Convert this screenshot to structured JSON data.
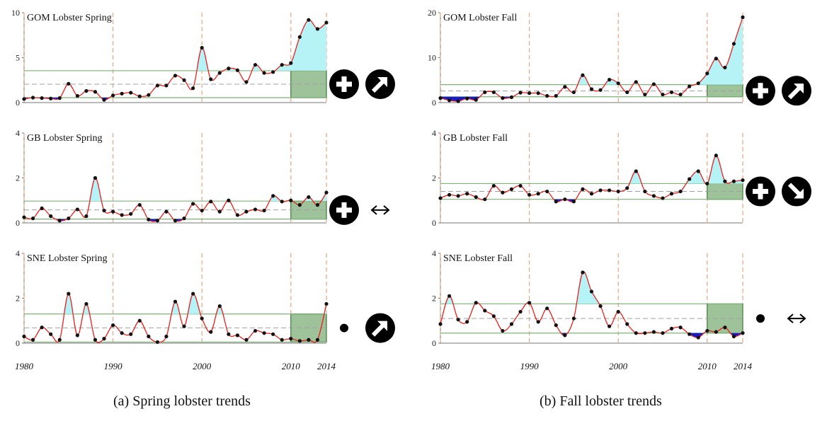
{
  "captions": {
    "spring": "(a) Spring lobster trends",
    "fall": "(b) Fall lobster trends"
  },
  "colors": {
    "line": "#e8201e",
    "point": "#111111",
    "above_fill": "#b6f3f7",
    "below_fill": "#1a1acc",
    "band_line": "#7fb07a",
    "mean_line": "#a0a0a0",
    "decade_line": "#e2a783",
    "recent_box_fill": "#9ec39a",
    "recent_box_stroke": "#3f7d3c",
    "icon_fill": "#000000"
  },
  "x_ticks": [
    "1980",
    "1990",
    "2000",
    "2010",
    "2014"
  ],
  "chart_data": [
    {
      "type": "line",
      "title": "GOM Lobster Spring",
      "x": [
        1980,
        1981,
        1982,
        1983,
        1984,
        1985,
        1986,
        1987,
        1988,
        1989,
        1990,
        1991,
        1992,
        1993,
        1994,
        1995,
        1996,
        1997,
        1998,
        1999,
        2000,
        2001,
        2002,
        2003,
        2004,
        2005,
        2006,
        2007,
        2008,
        2009,
        2010,
        2011,
        2012,
        2013,
        2014
      ],
      "values": [
        0.4,
        0.55,
        0.5,
        0.45,
        0.5,
        2.1,
        0.75,
        1.3,
        1.2,
        0.3,
        0.8,
        1.0,
        1.1,
        0.7,
        0.85,
        1.9,
        1.9,
        3.0,
        2.5,
        1.6,
        6.1,
        2.6,
        3.3,
        3.8,
        3.6,
        2.3,
        4.2,
        3.3,
        3.4,
        4.2,
        4.4,
        7.3,
        9.2,
        8.2,
        8.9
      ],
      "ylim": [
        0,
        10
      ],
      "yticks": [
        "0",
        "5",
        "10"
      ],
      "mean": 2.05,
      "band": [
        0.55,
        3.55
      ],
      "recent_window": [
        2010,
        2014
      ],
      "indicators": {
        "level": "plus",
        "trend": "up-right arrow"
      }
    },
    {
      "type": "line",
      "title": "GB Lobster Spring",
      "x": [
        1980,
        1981,
        1982,
        1983,
        1984,
        1985,
        1986,
        1987,
        1988,
        1989,
        1990,
        1991,
        1992,
        1993,
        1994,
        1995,
        1996,
        1997,
        1998,
        1999,
        2000,
        2001,
        2002,
        2003,
        2004,
        2005,
        2006,
        2007,
        2008,
        2009,
        2010,
        2011,
        2012,
        2013,
        2014
      ],
      "values": [
        0.25,
        0.2,
        0.65,
        0.3,
        0.1,
        0.2,
        0.6,
        0.3,
        2.0,
        0.55,
        0.5,
        0.35,
        0.4,
        0.8,
        0.15,
        0.1,
        0.5,
        0.1,
        0.2,
        0.85,
        0.55,
        0.95,
        0.5,
        1.0,
        0.35,
        0.5,
        0.6,
        0.55,
        1.2,
        0.95,
        1.0,
        0.8,
        1.15,
        0.8,
        1.35
      ],
      "ylim": [
        0,
        4
      ],
      "yticks": [
        "0",
        "2",
        "4"
      ],
      "mean": 0.58,
      "band": [
        0.17,
        0.97
      ],
      "recent_window": [
        2010,
        2014
      ],
      "indicators": {
        "level": "plus",
        "trend": "double-headed arrow"
      }
    },
    {
      "type": "line",
      "title": "SNE Lobster Spring",
      "x": [
        1980,
        1981,
        1982,
        1983,
        1984,
        1985,
        1986,
        1987,
        1988,
        1989,
        1990,
        1991,
        1992,
        1993,
        1994,
        1995,
        1996,
        1997,
        1998,
        1999,
        2000,
        2001,
        2002,
        2003,
        2004,
        2005,
        2006,
        2007,
        2008,
        2009,
        2010,
        2011,
        2012,
        2013,
        2014
      ],
      "values": [
        0.3,
        0.15,
        0.7,
        0.4,
        0.15,
        2.2,
        0.35,
        1.75,
        0.15,
        0.2,
        0.8,
        0.45,
        0.4,
        1.0,
        0.3,
        0.05,
        0.3,
        1.85,
        0.75,
        2.2,
        1.1,
        0.5,
        1.65,
        0.4,
        0.35,
        0.15,
        0.55,
        0.45,
        0.4,
        0.15,
        0.2,
        0.1,
        0.15,
        0.15,
        1.75
      ],
      "ylim": [
        0,
        4
      ],
      "yticks": [
        "0",
        "2",
        "4"
      ],
      "mean": 0.68,
      "band": [
        0.05,
        1.3
      ],
      "recent_window": [
        2010,
        2014
      ],
      "indicators": {
        "level": "dot",
        "trend": "up-right arrow"
      }
    },
    {
      "type": "line",
      "title": "GOM Lobster Fall",
      "x": [
        1980,
        1981,
        1982,
        1983,
        1984,
        1985,
        1986,
        1987,
        1988,
        1989,
        1990,
        1991,
        1992,
        1993,
        1994,
        1995,
        1996,
        1997,
        1998,
        1999,
        2000,
        2001,
        2002,
        2003,
        2004,
        2005,
        2006,
        2007,
        2008,
        2009,
        2010,
        2011,
        2012,
        2013,
        2014
      ],
      "values": [
        1.0,
        0.5,
        0.3,
        0.9,
        0.6,
        2.3,
        2.3,
        1.0,
        1.2,
        2.2,
        2.1,
        2.1,
        1.5,
        1.5,
        3.5,
        2.3,
        6.1,
        3.0,
        2.8,
        5.1,
        4.3,
        2.3,
        4.6,
        1.8,
        4.1,
        1.8,
        2.3,
        1.8,
        3.6,
        4.3,
        6.5,
        9.8,
        7.8,
        13.1,
        19.0
      ],
      "ylim": [
        0,
        20
      ],
      "yticks": [
        "0",
        "10",
        "20"
      ],
      "mean": 2.6,
      "band": [
        1.3,
        4.0
      ],
      "recent_window": [
        2010,
        2014
      ],
      "indicators": {
        "level": "plus",
        "trend": "up-right arrow"
      }
    },
    {
      "type": "line",
      "title": "GB Lobster Fall",
      "x": [
        1980,
        1981,
        1982,
        1983,
        1984,
        1985,
        1986,
        1987,
        1988,
        1989,
        1990,
        1991,
        1992,
        1993,
        1994,
        1995,
        1996,
        1997,
        1998,
        1999,
        2000,
        2001,
        2002,
        2003,
        2004,
        2005,
        2006,
        2007,
        2008,
        2009,
        2010,
        2011,
        2012,
        2013,
        2014
      ],
      "values": [
        1.1,
        1.25,
        1.2,
        1.3,
        1.15,
        1.05,
        1.65,
        1.35,
        1.5,
        1.65,
        1.25,
        1.3,
        1.4,
        0.95,
        1.05,
        0.95,
        1.5,
        1.3,
        1.45,
        1.45,
        1.4,
        1.55,
        2.3,
        1.4,
        1.2,
        1.1,
        1.3,
        1.4,
        1.95,
        2.3,
        1.75,
        3.0,
        1.85,
        1.85,
        1.9
      ],
      "ylim": [
        0,
        4
      ],
      "yticks": [
        "0",
        "2",
        "4"
      ],
      "mean": 1.4,
      "band": [
        1.05,
        1.75
      ],
      "recent_window": [
        2010,
        2014
      ],
      "indicators": {
        "level": "plus",
        "trend": "down-right arrow"
      }
    },
    {
      "type": "line",
      "title": "SNE Lobster Fall",
      "x": [
        1980,
        1981,
        1982,
        1983,
        1984,
        1985,
        1986,
        1987,
        1988,
        1989,
        1990,
        1991,
        1992,
        1993,
        1994,
        1995,
        1996,
        1997,
        1998,
        1999,
        2000,
        2001,
        2002,
        2003,
        2004,
        2005,
        2006,
        2007,
        2008,
        2009,
        2010,
        2011,
        2012,
        2013,
        2014
      ],
      "values": [
        0.85,
        2.1,
        1.05,
        0.95,
        1.8,
        1.45,
        1.2,
        0.55,
        0.85,
        1.4,
        1.8,
        0.95,
        1.55,
        0.8,
        0.35,
        1.1,
        3.15,
        2.3,
        1.65,
        0.75,
        1.4,
        0.85,
        0.45,
        0.45,
        0.5,
        0.45,
        0.65,
        0.7,
        0.4,
        0.25,
        0.55,
        0.5,
        0.7,
        0.3,
        0.45
      ],
      "ylim": [
        0,
        4
      ],
      "yticks": [
        "0",
        "2",
        "4"
      ],
      "mean": 1.1,
      "band": [
        0.45,
        1.75
      ],
      "recent_window": [
        2010,
        2014
      ],
      "indicators": {
        "level": "dot",
        "trend": "double-headed arrow"
      }
    }
  ]
}
